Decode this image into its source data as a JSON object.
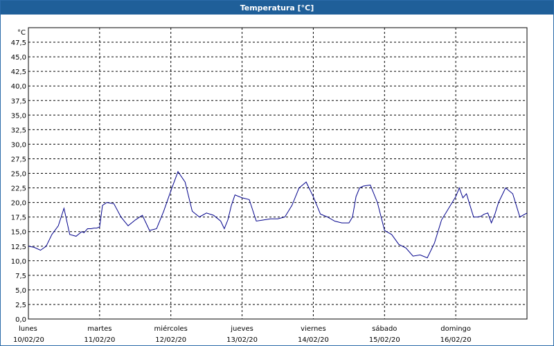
{
  "window": {
    "title": "Temperatura [°C]"
  },
  "colors": {
    "titlebar": "#1f5f99",
    "line": "#00008b",
    "grid": "#000000",
    "background": "#ffffff"
  },
  "chart_data": {
    "type": "line",
    "title": "Temperatura [°C]",
    "ylabel": "°C",
    "xlabel": "",
    "ylim": [
      0,
      50
    ],
    "yticks": [
      "0,0",
      "2,5",
      "5,0",
      "7,5",
      "10,0",
      "12,5",
      "15,0",
      "17,5",
      "20,0",
      "22,5",
      "25,0",
      "27,5",
      "30,0",
      "32,5",
      "35,0",
      "37,5",
      "40,0",
      "42,5",
      "45,0",
      "47,5"
    ],
    "x_range_days": [
      0,
      7
    ],
    "xticks": [
      {
        "day": "lunes",
        "date": "10/02/20"
      },
      {
        "day": "martes",
        "date": "11/02/20"
      },
      {
        "day": "miércoles",
        "date": "12/02/20"
      },
      {
        "day": "jueves",
        "date": "13/02/20"
      },
      {
        "day": "viernes",
        "date": "14/02/20"
      },
      {
        "day": "sábado",
        "date": "15/02/20"
      },
      {
        "day": "domingo",
        "date": "16/02/20"
      }
    ],
    "grid": true,
    "series": [
      {
        "x": [
          0.0,
          0.08,
          0.17,
          0.25,
          0.33,
          0.42,
          0.5,
          0.58,
          0.67,
          0.75,
          0.78,
          0.83,
          0.88,
          0.92,
          0.96,
          1.0,
          1.04,
          1.1,
          1.2,
          1.3,
          1.4,
          1.5,
          1.6,
          1.7,
          1.8,
          1.9,
          2.0,
          2.1,
          2.2,
          2.3,
          2.4,
          2.5,
          2.6,
          2.7,
          2.75,
          2.8,
          2.85,
          2.9,
          3.0,
          3.1,
          3.2,
          3.3,
          3.4,
          3.5,
          3.6,
          3.7,
          3.8,
          3.9,
          4.0,
          4.1,
          4.2,
          4.3,
          4.4,
          4.5,
          4.55,
          4.6,
          4.65,
          4.7,
          4.8,
          4.9,
          5.0,
          5.1,
          5.2,
          5.3,
          5.4,
          5.5,
          5.6,
          5.7,
          5.8,
          5.9,
          6.0,
          6.05,
          6.1,
          6.15,
          6.2,
          6.25,
          6.3,
          6.35,
          6.4,
          6.45,
          6.5,
          6.55,
          6.6,
          6.7,
          6.8,
          6.9,
          7.0
        ],
        "y": [
          12.5,
          12.3,
          11.8,
          12.5,
          14.5,
          16.0,
          19.0,
          14.5,
          14.2,
          15.0,
          14.8,
          15.5,
          15.5,
          15.6,
          15.6,
          15.8,
          19.5,
          20.0,
          19.8,
          17.5,
          16.0,
          17.0,
          17.8,
          15.2,
          15.5,
          18.5,
          22.0,
          25.3,
          23.5,
          18.5,
          17.5,
          18.2,
          17.8,
          16.8,
          15.5,
          17.0,
          19.5,
          21.3,
          20.8,
          20.5,
          16.8,
          17.0,
          17.2,
          17.2,
          17.5,
          19.5,
          22.5,
          23.5,
          21.0,
          18.0,
          17.5,
          16.8,
          16.5,
          16.5,
          17.5,
          21.0,
          22.5,
          22.8,
          23.0,
          20.0,
          15.2,
          14.5,
          12.8,
          12.2,
          10.8,
          11.0,
          10.5,
          13.0,
          17.0,
          19.0,
          21.0,
          22.5,
          20.8,
          21.5,
          19.5,
          17.5,
          17.5,
          17.6,
          18.0,
          18.2,
          16.5,
          18.0,
          20.0,
          22.5,
          21.5,
          17.5,
          18.2
        ]
      }
    ]
  }
}
